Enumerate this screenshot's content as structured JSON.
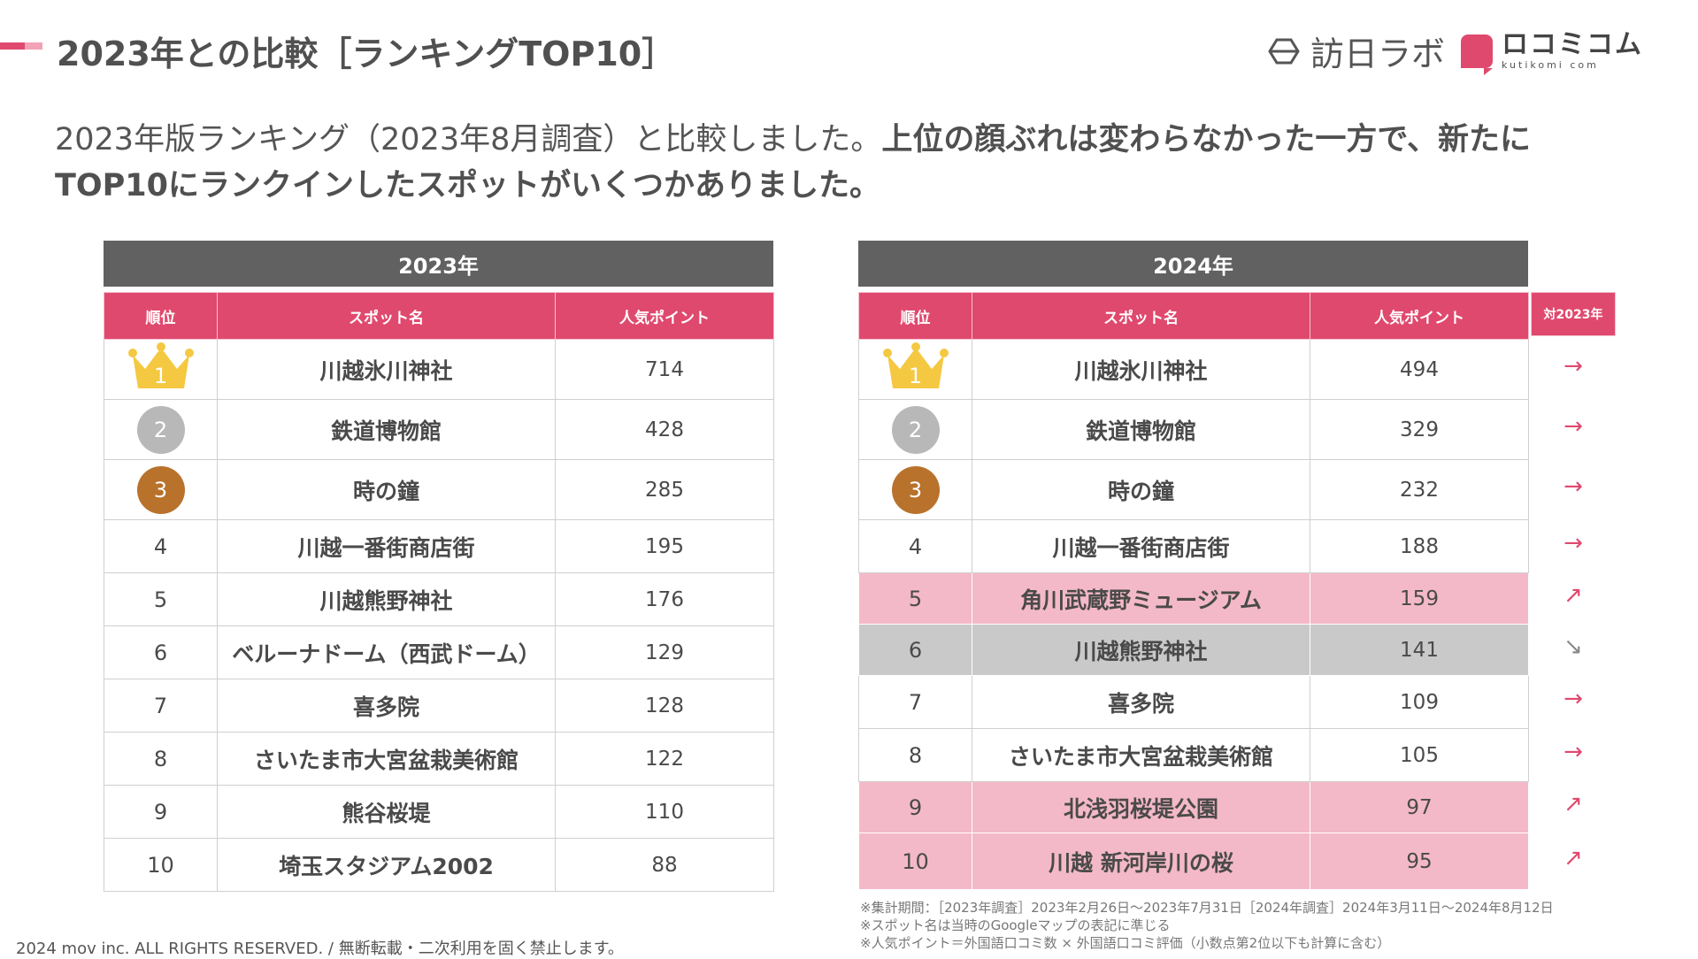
{
  "title": "2023年との比較［ランキングTOP10］",
  "logos": {
    "houjin_label": "訪日ラボ",
    "kuti_label": "ロコミコム",
    "kuti_sub": "kutikomi com"
  },
  "lead": {
    "normal": "2023年版ランキング（2023年8月調査）と比較しました。",
    "bold_line1": "上位の顔ぶれは変わらなかった一方で、新たに",
    "bold_line2": "TOP10にランクインしたスポットがいくつかありました。"
  },
  "table_2023": {
    "year_label": "2023年",
    "headers": [
      "順位",
      "スポット名",
      "人気ポイント"
    ],
    "rows": [
      {
        "rank": "1",
        "name": "川越氷川神社",
        "points": "714"
      },
      {
        "rank": "2",
        "name": "鉄道博物館",
        "points": "428"
      },
      {
        "rank": "3",
        "name": "時の鐘",
        "points": "285"
      },
      {
        "rank": "4",
        "name": "川越一番街商店街",
        "points": "195"
      },
      {
        "rank": "5",
        "name": "川越熊野神社",
        "points": "176"
      },
      {
        "rank": "6",
        "name": "ベルーナドーム（西武ドーム）",
        "points": "129"
      },
      {
        "rank": "7",
        "name": "喜多院",
        "points": "128"
      },
      {
        "rank": "8",
        "name": "さいたま市大宮盆栽美術館",
        "points": "122"
      },
      {
        "rank": "9",
        "name": "熊谷桜堤",
        "points": "110"
      },
      {
        "rank": "10",
        "name": "埼玉スタジアム2002",
        "points": "88"
      }
    ]
  },
  "table_2024": {
    "year_label": "2024年",
    "headers": [
      "順位",
      "スポット名",
      "人気ポイント"
    ],
    "vs_header": "対2023年",
    "rows": [
      {
        "rank": "1",
        "name": "川越氷川神社",
        "points": "494",
        "change": "→",
        "status": "same"
      },
      {
        "rank": "2",
        "name": "鉄道博物館",
        "points": "329",
        "change": "→",
        "status": "same"
      },
      {
        "rank": "3",
        "name": "時の鐘",
        "points": "232",
        "change": "→",
        "status": "same"
      },
      {
        "rank": "4",
        "name": "川越一番街商店街",
        "points": "188",
        "change": "→",
        "status": "same"
      },
      {
        "rank": "5",
        "name": "角川武蔵野ミュージアム",
        "points": "159",
        "change": "↗",
        "status": "up"
      },
      {
        "rank": "6",
        "name": "川越熊野神社",
        "points": "141",
        "change": "↘",
        "status": "down"
      },
      {
        "rank": "7",
        "name": "喜多院",
        "points": "109",
        "change": "→",
        "status": "same"
      },
      {
        "rank": "8",
        "name": "さいたま市大宮盆栽美術館",
        "points": "105",
        "change": "→",
        "status": "same"
      },
      {
        "rank": "9",
        "name": "北浅羽桜堤公園",
        "points": "97",
        "change": "↗",
        "status": "up"
      },
      {
        "rank": "10",
        "name": "川越 新河岸川の桜",
        "points": "95",
        "change": "↗",
        "status": "up"
      }
    ]
  },
  "notes": [
    "※集計期間：［2023年調査］2023年2月26日〜2023年7月31日［2024年調査］2024年3月11日〜2024年8月12日",
    "※スポット名は当時のGoogleマップの表記に準じる",
    "※人気ポイント＝外国語口コミ数 × 外国語口コミ評価（小数点第2位以下も計算に含む）"
  ],
  "copyright": "2024 mov inc. ALL RIGHTS RESERVED. / 無断転載・二次利用を固く禁止します。",
  "colors": {
    "accent": "#e0496e",
    "header_gray": "#616161",
    "up_row": "#f4b9c8",
    "down_row": "#c9c9c9",
    "gold": "#f5c842",
    "silver": "#b8b8b8",
    "bronze": "#b8722c"
  }
}
